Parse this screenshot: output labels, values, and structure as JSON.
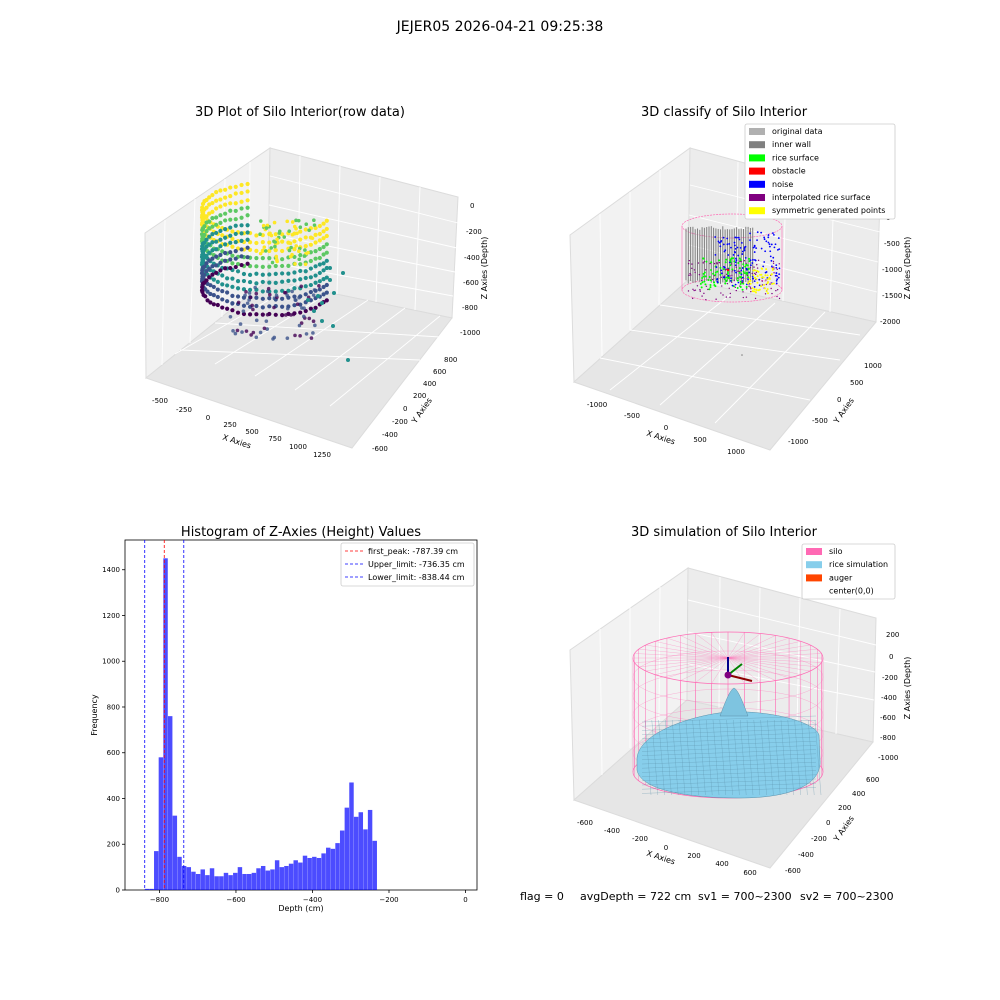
{
  "figure": {
    "suptitle": "JEJER05 2026-04-21 09:25:38",
    "status_line": {
      "flag": "flag = 0",
      "avg_depth": "avgDepth = 722 cm",
      "sv1": "sv1 = 700~2300",
      "sv2": "sv2 = 700~2300"
    }
  },
  "chart_data": [
    {
      "type": "scatter",
      "title": "3D Plot of Silo Interior(row data)",
      "xlabel": "X Axies",
      "ylabel": "Y Axies",
      "zlabel": "Z Axies (Depth)",
      "x_ticks": [
        "-500",
        "-250",
        "0",
        "250",
        "500",
        "750",
        "1000",
        "1250"
      ],
      "y_ticks": [
        "-600",
        "-400",
        "-200",
        "0",
        "200",
        "400",
        "600",
        "800"
      ],
      "z_ticks": [
        "-1000",
        "-800",
        "-600",
        "-400",
        "-200",
        "0"
      ],
      "xlim": [
        -600,
        1350
      ],
      "ylim": [
        -650,
        850
      ],
      "zlim": [
        -1050,
        50
      ],
      "colormap": [
        "#440154",
        "#3b528b",
        "#21908d",
        "#5dc863",
        "#fde725"
      ]
    },
    {
      "type": "scatter",
      "title": "3D classify of Silo Interior",
      "xlabel": "X Axies",
      "ylabel": "Y Axies",
      "zlabel": "Z Axies (Depth)",
      "x_ticks": [
        "-1000",
        "-500",
        "0",
        "500",
        "1000"
      ],
      "y_ticks": [
        "-1000",
        "-500",
        "0",
        "500",
        "1000"
      ],
      "z_ticks": [
        "-2000",
        "-1500",
        "-1000",
        "-500",
        "0"
      ],
      "xlim": [
        -1200,
        1200
      ],
      "ylim": [
        -1200,
        1200
      ],
      "zlim": [
        -2200,
        100
      ],
      "legend_position": "top-right",
      "legend": [
        {
          "label": "original data",
          "color": "#b0b0b0"
        },
        {
          "label": "inner wall",
          "color": "#808080"
        },
        {
          "label": "rice surface",
          "color": "#00ff00"
        },
        {
          "label": "obstacle",
          "color": "#ff0000"
        },
        {
          "label": "noise",
          "color": "#0000ff"
        },
        {
          "label": "interpolated rice surface",
          "color": "#800080"
        },
        {
          "label": "symmetric generated points",
          "color": "#ffff00"
        }
      ]
    },
    {
      "type": "bar",
      "title": "Histogram of Z-Axies (Height) Values",
      "xlabel": "Depth (cm)",
      "ylabel": "Frequency",
      "xlim": [
        -890,
        30
      ],
      "ylim": [
        0,
        1530
      ],
      "x_ticks": [
        -800,
        -600,
        -400,
        -200,
        0
      ],
      "y_ticks": [
        0,
        200,
        400,
        600,
        800,
        1000,
        1200,
        1400
      ],
      "bar_color": "#0000ff",
      "bin_start": -838.44,
      "bin_width": 12.15,
      "values": [
        5,
        5,
        170,
        580,
        1450,
        760,
        325,
        145,
        105,
        100,
        80,
        70,
        90,
        65,
        95,
        60,
        60,
        75,
        65,
        75,
        100,
        70,
        70,
        75,
        95,
        105,
        85,
        90,
        130,
        100,
        105,
        115,
        130,
        120,
        150,
        140,
        145,
        140,
        160,
        185,
        180,
        205,
        260,
        360,
        470,
        320,
        340,
        265,
        350,
        215
      ],
      "vlines": [
        {
          "label": "first_peak: -787.39 cm",
          "x": -787.39,
          "color": "#ff0000"
        },
        {
          "label": "Upper_limit: -736.35 cm",
          "x": -736.35,
          "color": "#0000ff"
        },
        {
          "label": "Lower_limit: -838.44 cm",
          "x": -838.44,
          "color": "#0000ff"
        }
      ],
      "legend_position": "top-right"
    },
    {
      "type": "area",
      "title": "3D simulation of Silo Interior",
      "xlabel": "X Axies",
      "ylabel": "Y Axies",
      "zlabel": "Z Axies (Depth)",
      "x_ticks": [
        "-600",
        "-400",
        "-200",
        "0",
        "200",
        "400",
        "600"
      ],
      "y_ticks": [
        "-600",
        "-400",
        "-200",
        "0",
        "200",
        "400",
        "600"
      ],
      "z_ticks": [
        "-1000",
        "-800",
        "-600",
        "-400",
        "-200",
        "0",
        "200"
      ],
      "xlim": [
        -650,
        650
      ],
      "ylim": [
        -650,
        650
      ],
      "zlim": [
        -1050,
        300
      ],
      "legend_position": "top-right",
      "legend": [
        {
          "label": "silo",
          "color": "#ff69b4"
        },
        {
          "label": "rice simulation",
          "color": "#87ceeb"
        },
        {
          "label": "auger",
          "color": "#ff4500"
        },
        {
          "label": "center(0,0)",
          "color": "#ffffff"
        }
      ]
    }
  ]
}
